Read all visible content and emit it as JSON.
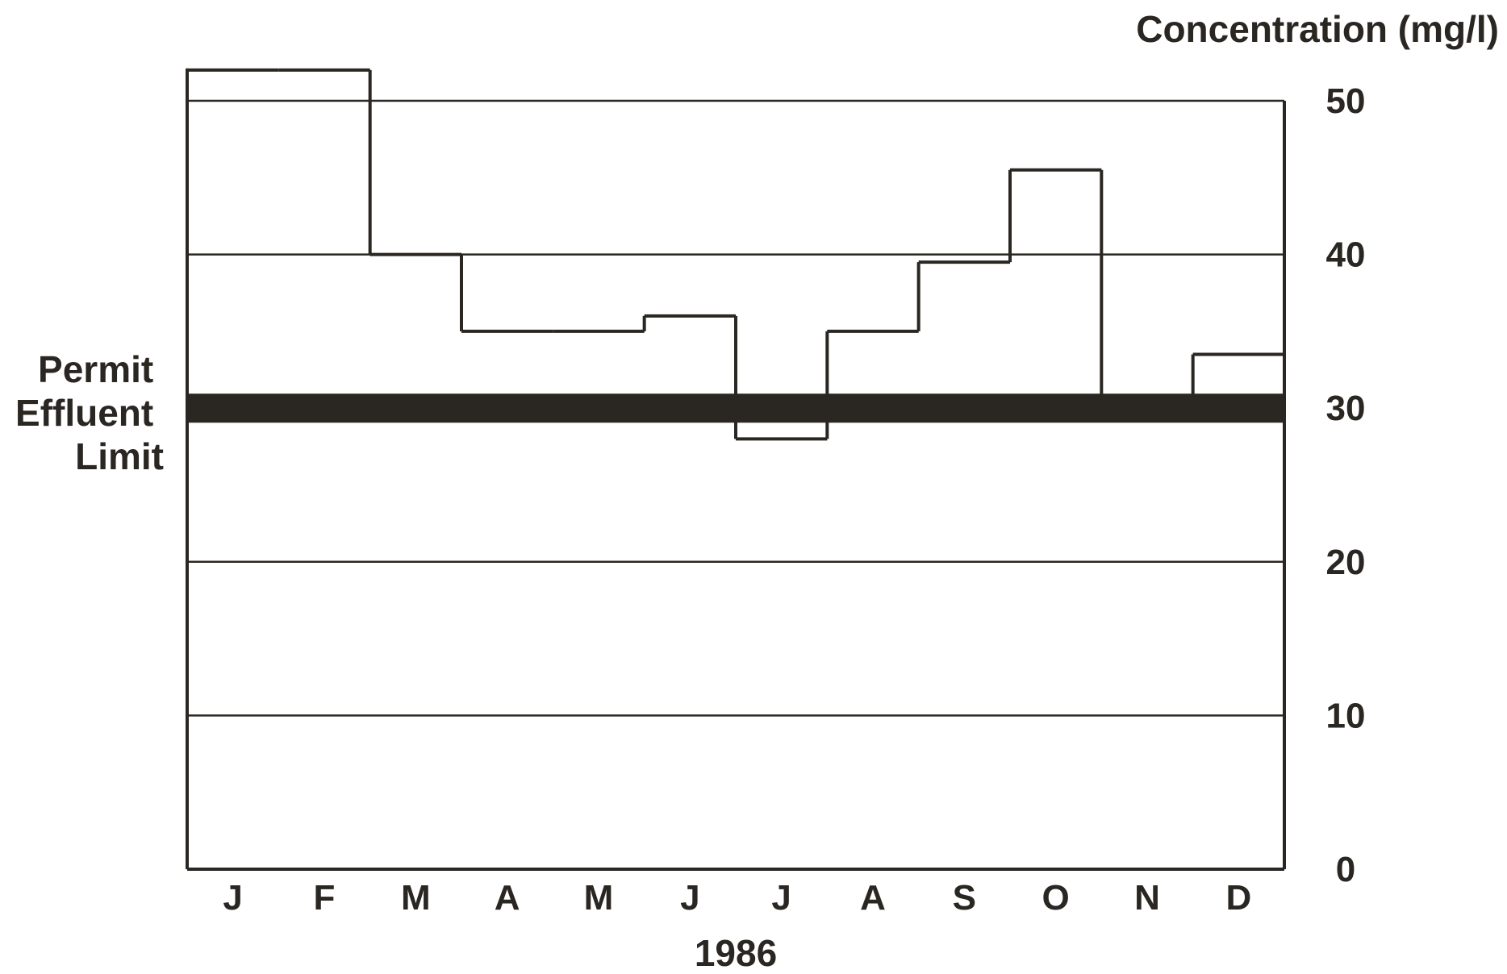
{
  "chart_data": {
    "type": "bar",
    "style": "stepped outline",
    "categories": [
      "J",
      "F",
      "M",
      "A",
      "M",
      "J",
      "J",
      "A",
      "S",
      "O",
      "N",
      "D"
    ],
    "values": [
      52,
      52,
      40,
      35,
      35,
      36,
      28,
      35,
      39.5,
      45.5,
      30,
      33.5
    ],
    "title": "",
    "xlabel": "1986",
    "ylabel": "Concentration (mg/l)",
    "ylim": [
      0,
      50
    ],
    "yticks": [
      0,
      10,
      20,
      30,
      40,
      50
    ],
    "grid": true,
    "reference_line": {
      "value": 30,
      "label_lines": [
        "Permit",
        "Effluent",
        "Limit"
      ],
      "color": "#2a2622"
    },
    "colors": {
      "line": "#2a2622",
      "background": "#ffffff"
    }
  }
}
